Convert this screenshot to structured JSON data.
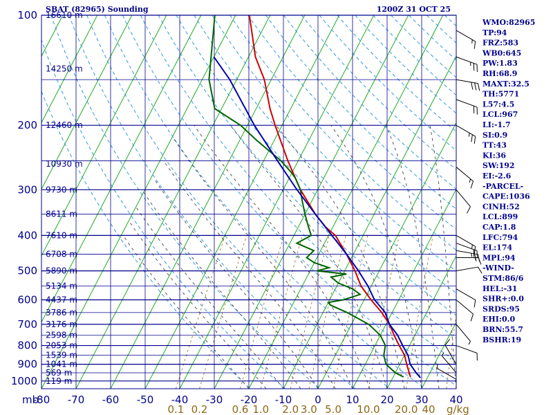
{
  "chart_data": {
    "type": "line",
    "title": "SBAT (82965) Sounding",
    "datetime": "1200Z 31 OCT 25",
    "unit_label": "mb",
    "mixing_unit": "g/kg",
    "pressure_levels": [
      100,
      200,
      300,
      400,
      500,
      600,
      700,
      800,
      900,
      1000
    ],
    "temperature_ticks": [
      -80,
      -70,
      -60,
      -50,
      -40,
      -30,
      -20,
      -10,
      0,
      10,
      20,
      30,
      40
    ],
    "mixing_ratio_labels": [
      "0.1",
      "0.2",
      "0.6",
      "1.0",
      "2.0",
      "3.0",
      "5.0",
      "10.0",
      "20.0",
      "40"
    ],
    "height_labels": [
      {
        "p": 100,
        "text": "16610 m"
      },
      {
        "p": 140,
        "text": "14250 m"
      },
      {
        "p": 200,
        "text": "12460 m"
      },
      {
        "p": 255,
        "text": "10930 m"
      },
      {
        "p": 300,
        "text": "9730 m"
      },
      {
        "p": 350,
        "text": "8611 m"
      },
      {
        "p": 400,
        "text": "7610 m"
      },
      {
        "p": 450,
        "text": "6708 m"
      },
      {
        "p": 500,
        "text": "5890 m"
      },
      {
        "p": 550,
        "text": "5134 m"
      },
      {
        "p": 600,
        "text": "4437 m"
      },
      {
        "p": 650,
        "text": "3786 m"
      },
      {
        "p": 700,
        "text": "3176 m"
      },
      {
        "p": 750,
        "text": "2598 m"
      },
      {
        "p": 800,
        "text": "2053 m"
      },
      {
        "p": 850,
        "text": "1539 m"
      },
      {
        "p": 900,
        "text": "1041 m"
      },
      {
        "p": 950,
        "text": "569 m"
      },
      {
        "p": 1000,
        "text": "119 m"
      }
    ],
    "series": [
      {
        "color": "#cc0000",
        "points": [
          [
            100,
            -76
          ],
          [
            130,
            -68
          ],
          [
            150,
            -62
          ],
          [
            180,
            -56
          ],
          [
            200,
            -52
          ],
          [
            250,
            -43
          ],
          [
            300,
            -35
          ],
          [
            350,
            -27
          ],
          [
            380,
            -22
          ],
          [
            400,
            -18
          ],
          [
            450,
            -12
          ],
          [
            500,
            -7
          ],
          [
            550,
            -3
          ],
          [
            600,
            2
          ],
          [
            650,
            7
          ],
          [
            700,
            11
          ],
          [
            750,
            14
          ],
          [
            800,
            17
          ],
          [
            850,
            20
          ],
          [
            900,
            22
          ],
          [
            950,
            24
          ],
          [
            975,
            25
          ]
        ]
      },
      {
        "color": "#006400",
        "points": [
          [
            100,
            -86
          ],
          [
            150,
            -78
          ],
          [
            180,
            -72
          ],
          [
            200,
            -62
          ],
          [
            220,
            -55
          ],
          [
            250,
            -45
          ],
          [
            270,
            -40
          ],
          [
            280,
            -38
          ],
          [
            300,
            -35
          ],
          [
            320,
            -33
          ],
          [
            350,
            -30
          ],
          [
            380,
            -27
          ],
          [
            400,
            -25
          ],
          [
            420,
            -28
          ],
          [
            440,
            -22
          ],
          [
            460,
            -23
          ],
          [
            475,
            -20
          ],
          [
            490,
            -15
          ],
          [
            500,
            -18
          ],
          [
            510,
            -9
          ],
          [
            520,
            -13
          ],
          [
            540,
            -10
          ],
          [
            560,
            -5
          ],
          [
            580,
            -2
          ],
          [
            600,
            -6
          ],
          [
            610,
            -10
          ],
          [
            620,
            -9
          ],
          [
            650,
            -3
          ],
          [
            700,
            5
          ],
          [
            750,
            10
          ],
          [
            800,
            13
          ],
          [
            850,
            14
          ],
          [
            900,
            16
          ],
          [
            950,
            20
          ],
          [
            975,
            23
          ]
        ]
      },
      {
        "color": "#0000aa",
        "points": [
          [
            130,
            -80
          ],
          [
            150,
            -72
          ],
          [
            200,
            -58
          ],
          [
            250,
            -46
          ],
          [
            300,
            -36
          ],
          [
            350,
            -27
          ],
          [
            400,
            -19
          ],
          [
            450,
            -12
          ],
          [
            500,
            -6
          ],
          [
            550,
            -1
          ],
          [
            600,
            3
          ],
          [
            650,
            8
          ],
          [
            700,
            11
          ],
          [
            750,
            15
          ],
          [
            800,
            18
          ],
          [
            850,
            21
          ],
          [
            900,
            23
          ],
          [
            950,
            26
          ],
          [
            980,
            28
          ]
        ]
      }
    ],
    "indices": [
      "WMO:82965",
      "TP:94",
      "FRZ:583",
      "WB0:645",
      "PW:1.83",
      "RH:68.9",
      "MAXT:32.5",
      "TH:5771",
      "L57:4.5",
      "LCL:967",
      "LI:-1.7",
      "SI:0.9",
      "TT:43",
      "KI:36",
      "SW:192",
      "EI:-2.6",
      "-PARCEL-",
      "CAPE:1036",
      "CINH:52",
      "LCL:899",
      "CAP:1.8",
      "LFC:794",
      "EL:174",
      "MPL:94",
      "-WIND-",
      "STM:86/6",
      "HEL:-31",
      "SHR+:0.0",
      "SRDS:95",
      "EHI:0.0",
      "BRN:55.7",
      "BSHR:19"
    ],
    "wind_barbs": [
      {
        "p": 110,
        "dir": 300,
        "kt": 15
      },
      {
        "p": 130,
        "dir": 290,
        "kt": 25
      },
      {
        "p": 150,
        "dir": 280,
        "kt": 30
      },
      {
        "p": 170,
        "dir": 290,
        "kt": 20
      },
      {
        "p": 200,
        "dir": 300,
        "kt": 25
      },
      {
        "p": 260,
        "dir": 310,
        "kt": 15
      },
      {
        "p": 300,
        "dir": 320,
        "kt": 10
      },
      {
        "p": 400,
        "dir": 300,
        "kt": 15
      },
      {
        "p": 420,
        "dir": 290,
        "kt": 20
      },
      {
        "p": 440,
        "dir": 280,
        "kt": 25
      },
      {
        "p": 460,
        "dir": 270,
        "kt": 15
      },
      {
        "p": 500,
        "dir": 260,
        "kt": 10
      },
      {
        "p": 560,
        "dir": 300,
        "kt": 10
      },
      {
        "p": 600,
        "dir": 310,
        "kt": 10
      },
      {
        "p": 700,
        "dir": 320,
        "kt": 5
      },
      {
        "p": 800,
        "dir": 290,
        "kt": 10
      },
      {
        "p": 900,
        "dir": 150,
        "kt": 10
      },
      {
        "p": 950,
        "dir": 140,
        "kt": 5
      },
      {
        "p": 990,
        "dir": 120,
        "kt": 5
      }
    ]
  }
}
